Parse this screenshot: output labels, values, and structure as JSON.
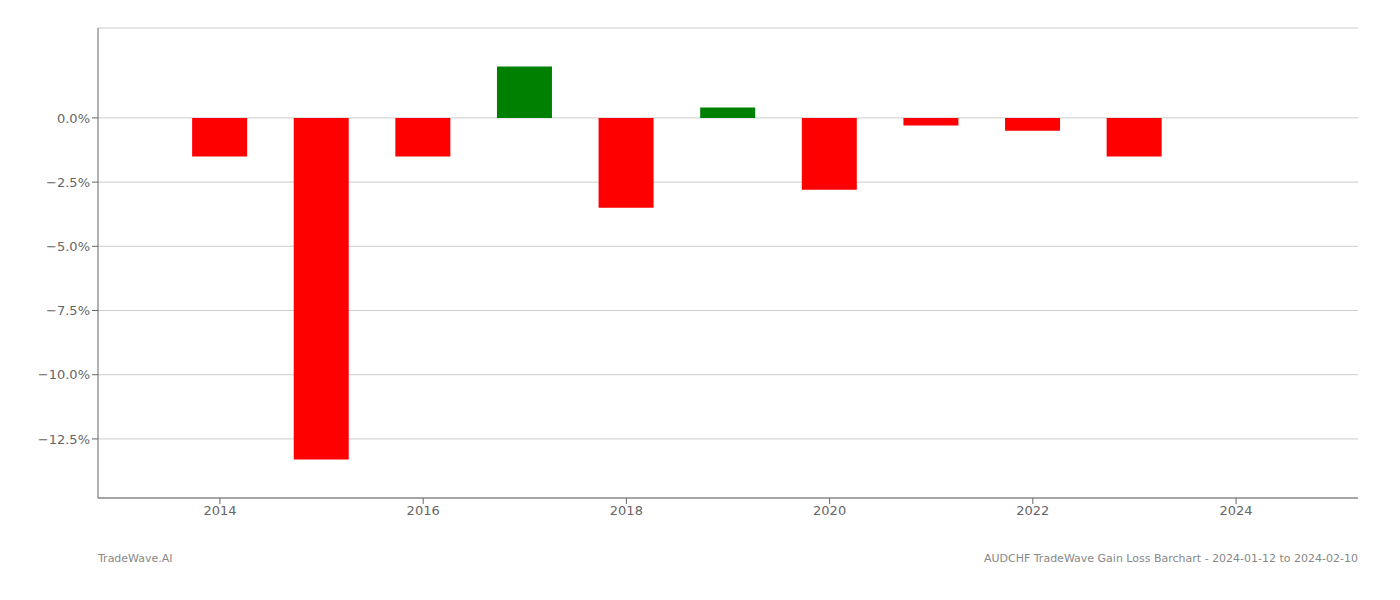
{
  "chart_data": {
    "type": "bar",
    "x": [
      2014,
      2015,
      2016,
      2017,
      2018,
      2019,
      2020,
      2021,
      2022,
      2023
    ],
    "values": [
      -0.015,
      -0.133,
      -0.015,
      0.02,
      -0.035,
      0.004,
      -0.028,
      -0.003,
      -0.005,
      -0.015
    ],
    "colors": [
      "#ff0000",
      "#ff0000",
      "#ff0000",
      "#008000",
      "#ff0000",
      "#008000",
      "#ff0000",
      "#ff0000",
      "#ff0000",
      "#ff0000"
    ],
    "xlim": [
      2012.8,
      2025.2
    ],
    "xticks": [
      2014,
      2016,
      2018,
      2020,
      2022,
      2024
    ],
    "ylim": [
      -0.148,
      0.035
    ],
    "yticks": [
      {
        "value": 0.0,
        "label": "0.0%"
      },
      {
        "value": -0.025,
        "label": "−2.5%"
      },
      {
        "value": -0.05,
        "label": "−5.0%"
      },
      {
        "value": -0.075,
        "label": "−7.5%"
      },
      {
        "value": -0.1,
        "label": "−10.0%"
      },
      {
        "value": -0.125,
        "label": "−12.5%"
      }
    ],
    "grid": true,
    "annotations": [
      "TradeWave.AI",
      "AUDCHF TradeWave Gain Loss Barchart - 2024-01-12 to 2024-02-10"
    ]
  }
}
